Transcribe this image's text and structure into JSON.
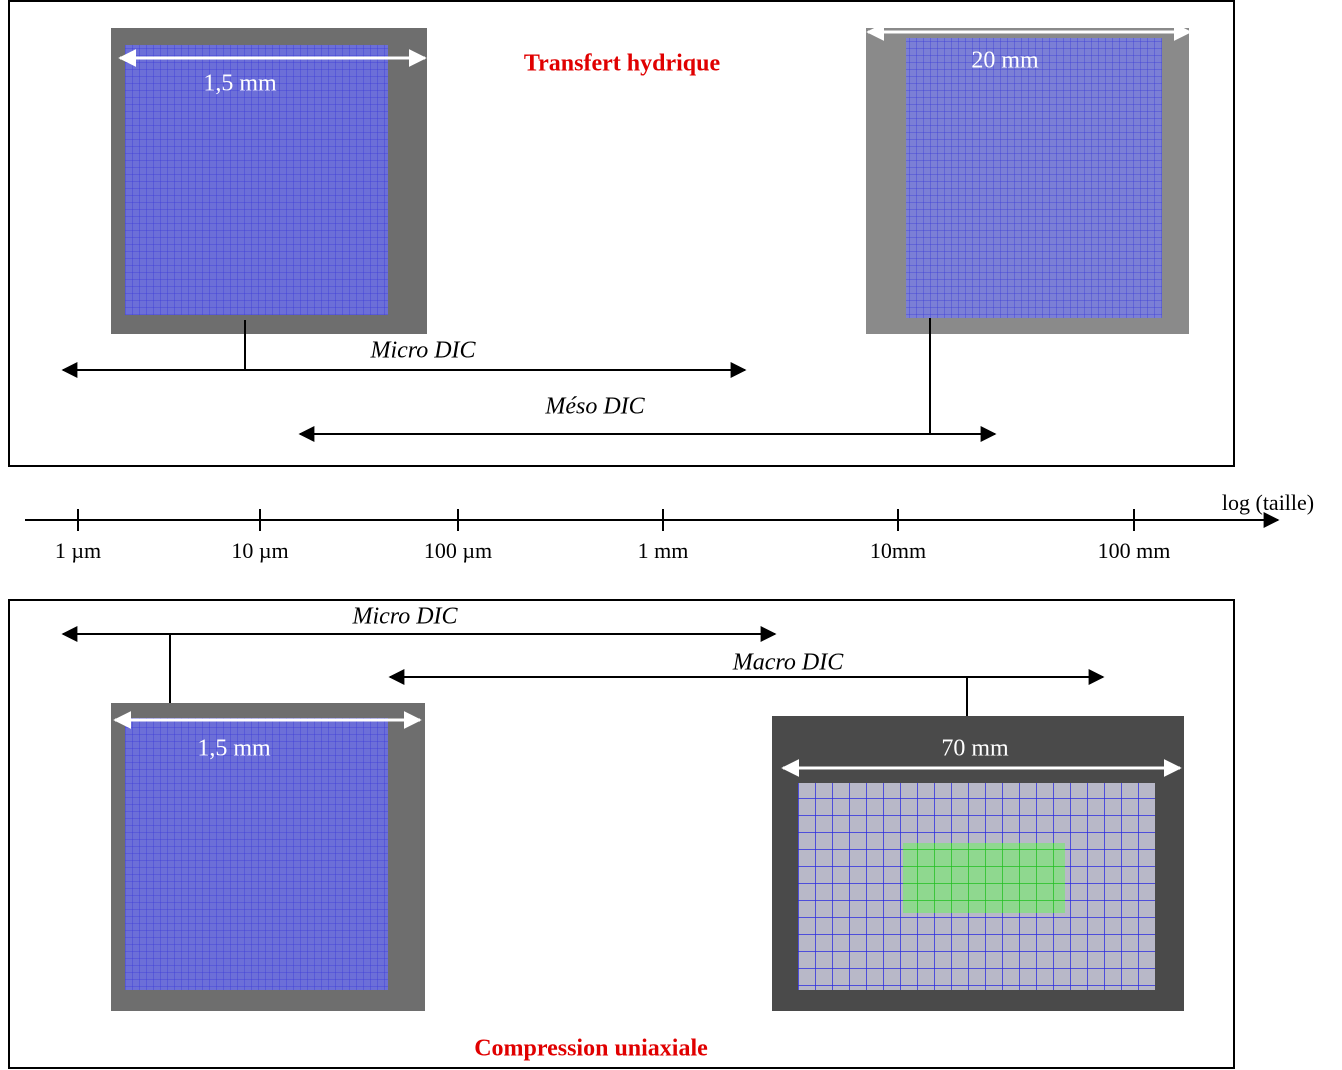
{
  "top_panel": {
    "title": "Transfert hydrique",
    "image_1_scale": "1,5 mm",
    "image_2_scale": "20 mm",
    "range_1": "Micro DIC",
    "range_2": "Méso DIC"
  },
  "axis": {
    "label": "log (taille)",
    "ticks": [
      "1 µm",
      "10 µm",
      "100 µm",
      "1 mm",
      "10mm",
      "100 mm"
    ]
  },
  "bottom_panel": {
    "title": "Compression uniaxiale",
    "range_1": "Micro DIC",
    "range_2": "Macro DIC",
    "image_1_scale": "1,5 mm",
    "image_2_scale": "70 mm"
  }
}
